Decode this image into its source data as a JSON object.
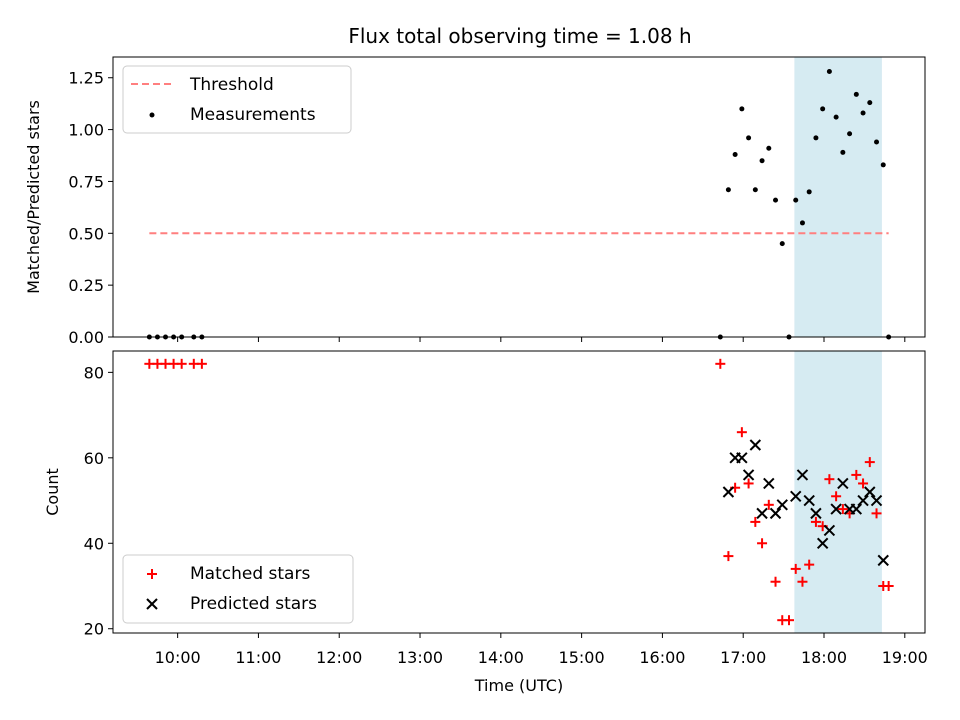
{
  "figure": {
    "title": "Flux total observing time = 1.08 h"
  },
  "chart_data": [
    {
      "type": "scatter",
      "ylabel": "Matched/Predicted stars",
      "xlabel": "",
      "xlim": [
        "09:12",
        "19:15"
      ],
      "ylim": [
        0,
        1.35
      ],
      "yticks": [
        0.0,
        0.25,
        0.5,
        0.75,
        1.0,
        1.25
      ],
      "ytick_labels": [
        "0.00",
        "0.25",
        "0.50",
        "0.75",
        "1.00",
        "1.25"
      ],
      "grid": false,
      "legend": "upper-left",
      "threshold": {
        "name": "Threshold",
        "y": 0.5,
        "x": [
          "09:39",
          "18:48"
        ],
        "color": "#ff7f7f",
        "style": "dashed"
      },
      "highlight_span": {
        "x": [
          "17:38",
          "18:43"
        ],
        "color": "#add8e6"
      },
      "series": [
        {
          "name": "Measurements",
          "color": "#000000",
          "marker": "dot",
          "points": [
            [
              "09:39",
              0
            ],
            [
              "09:45",
              0
            ],
            [
              "09:51",
              0
            ],
            [
              "09:57",
              0
            ],
            [
              "10:03",
              0
            ],
            [
              "10:12",
              0
            ],
            [
              "10:18",
              0
            ],
            [
              "16:43",
              0
            ],
            [
              "16:49",
              0.71
            ],
            [
              "16:54",
              0.88
            ],
            [
              "16:59",
              1.1
            ],
            [
              "17:04",
              0.96
            ],
            [
              "17:09",
              0.71
            ],
            [
              "17:14",
              0.85
            ],
            [
              "17:19",
              0.91
            ],
            [
              "17:24",
              0.66
            ],
            [
              "17:29",
              0.45
            ],
            [
              "17:34",
              0
            ],
            [
              "17:39",
              0.66
            ],
            [
              "17:44",
              0.55
            ],
            [
              "17:49",
              0.7
            ],
            [
              "17:54",
              0.96
            ],
            [
              "17:59",
              1.1
            ],
            [
              "18:04",
              1.28
            ],
            [
              "18:09",
              1.06
            ],
            [
              "18:14",
              0.89
            ],
            [
              "18:19",
              0.98
            ],
            [
              "18:24",
              1.17
            ],
            [
              "18:29",
              1.08
            ],
            [
              "18:34",
              1.13
            ],
            [
              "18:39",
              0.94
            ],
            [
              "18:44",
              0.83
            ],
            [
              "18:48",
              0
            ]
          ]
        }
      ]
    },
    {
      "type": "scatter",
      "ylabel": "Count",
      "xlabel": "Time (UTC)",
      "xlim": [
        "09:12",
        "19:15"
      ],
      "ylim": [
        19,
        85
      ],
      "yticks": [
        20,
        40,
        60,
        80
      ],
      "ytick_labels": [
        "20",
        "40",
        "60",
        "80"
      ],
      "xticks": [
        "10:00",
        "11:00",
        "12:00",
        "13:00",
        "14:00",
        "15:00",
        "16:00",
        "17:00",
        "18:00",
        "19:00"
      ],
      "xtick_labels": [
        "10:00",
        "11:00",
        "12:00",
        "13:00",
        "14:00",
        "15:00",
        "16:00",
        "17:00",
        "18:00",
        "19:00"
      ],
      "grid": false,
      "legend": "lower-left",
      "highlight_span": {
        "x": [
          "17:38",
          "18:43"
        ],
        "color": "#add8e6"
      },
      "series": [
        {
          "name": "Matched stars",
          "color": "#ff0000",
          "marker": "plus",
          "points": [
            [
              "09:39",
              82
            ],
            [
              "09:45",
              82
            ],
            [
              "09:51",
              82
            ],
            [
              "09:57",
              82
            ],
            [
              "10:03",
              82
            ],
            [
              "10:12",
              82
            ],
            [
              "10:18",
              82
            ],
            [
              "16:43",
              82
            ],
            [
              "16:49",
              37
            ],
            [
              "16:54",
              53
            ],
            [
              "16:59",
              66
            ],
            [
              "17:04",
              54
            ],
            [
              "17:09",
              45
            ],
            [
              "17:14",
              40
            ],
            [
              "17:19",
              49
            ],
            [
              "17:24",
              31
            ],
            [
              "17:29",
              22
            ],
            [
              "17:34",
              22
            ],
            [
              "17:39",
              34
            ],
            [
              "17:44",
              31
            ],
            [
              "17:49",
              35
            ],
            [
              "17:54",
              45
            ],
            [
              "17:59",
              44
            ],
            [
              "18:04",
              55
            ],
            [
              "18:09",
              51
            ],
            [
              "18:14",
              48
            ],
            [
              "18:19",
              47
            ],
            [
              "18:24",
              56
            ],
            [
              "18:29",
              54
            ],
            [
              "18:34",
              59
            ],
            [
              "18:39",
              47
            ],
            [
              "18:44",
              30
            ],
            [
              "18:48",
              30
            ]
          ]
        },
        {
          "name": "Predicted stars",
          "color": "#000000",
          "marker": "x",
          "points": [
            [
              "16:49",
              52
            ],
            [
              "16:54",
              60
            ],
            [
              "16:59",
              60
            ],
            [
              "17:04",
              56
            ],
            [
              "17:09",
              63
            ],
            [
              "17:14",
              47
            ],
            [
              "17:19",
              54
            ],
            [
              "17:24",
              47
            ],
            [
              "17:29",
              49
            ],
            [
              "17:39",
              51
            ],
            [
              "17:44",
              56
            ],
            [
              "17:49",
              50
            ],
            [
              "17:54",
              47
            ],
            [
              "17:59",
              40
            ],
            [
              "18:04",
              43
            ],
            [
              "18:09",
              48
            ],
            [
              "18:14",
              54
            ],
            [
              "18:19",
              48
            ],
            [
              "18:24",
              48
            ],
            [
              "18:29",
              50
            ],
            [
              "18:34",
              52
            ],
            [
              "18:39",
              50
            ],
            [
              "18:44",
              36
            ]
          ]
        }
      ]
    }
  ]
}
